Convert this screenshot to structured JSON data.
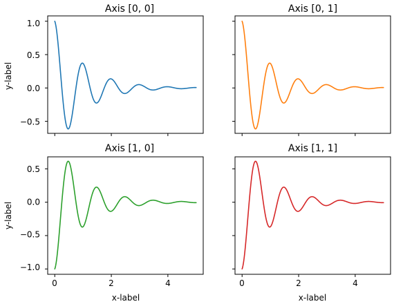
{
  "chart_data": [
    {
      "type": "line",
      "title": "Axis [0, 0]",
      "xlabel": "",
      "ylabel": "y-label",
      "xlim": [
        -0.25,
        5.25
      ],
      "ylim": [
        -0.68,
        1.08
      ],
      "xticks": [
        0,
        2,
        4
      ],
      "xtick_labels": [
        "",
        "",
        ""
      ],
      "yticks": [
        -0.5,
        0.0,
        0.5,
        1.0
      ],
      "ytick_labels": [
        "−0.5",
        "0.0",
        "0.5",
        "1.0"
      ],
      "color": "#1f77b4",
      "series": [
        {
          "function": "cos(2*pi*x)*exp(-x)",
          "sign": 1,
          "x_range": [
            0,
            5
          ]
        }
      ]
    },
    {
      "type": "line",
      "title": "Axis [0, 1]",
      "xlabel": "",
      "ylabel": "",
      "xlim": [
        -0.25,
        5.25
      ],
      "ylim": [
        -0.68,
        1.08
      ],
      "xticks": [
        0,
        2,
        4
      ],
      "xtick_labels": [
        "",
        "",
        ""
      ],
      "yticks": [
        -0.5,
        0.0,
        0.5,
        1.0
      ],
      "ytick_labels": [
        "",
        "",
        "",
        ""
      ],
      "color": "#ff7f0e",
      "series": [
        {
          "function": "cos(2*pi*x)*exp(-x)",
          "sign": 1,
          "x_range": [
            0,
            5
          ]
        }
      ]
    },
    {
      "type": "line",
      "title": "Axis [1, 0]",
      "xlabel": "x-label",
      "ylabel": "y-label",
      "xlim": [
        -0.25,
        5.25
      ],
      "ylim": [
        -1.08,
        0.68
      ],
      "xticks": [
        0,
        2,
        4
      ],
      "xtick_labels": [
        "0",
        "2",
        "4"
      ],
      "yticks": [
        -1.0,
        -0.5,
        0.0,
        0.5
      ],
      "ytick_labels": [
        "−1.0",
        "−0.5",
        "0.0",
        "0.5"
      ],
      "color": "#2ca02c",
      "series": [
        {
          "function": "-cos(2*pi*x)*exp(-x)",
          "sign": -1,
          "x_range": [
            0,
            5
          ]
        }
      ]
    },
    {
      "type": "line",
      "title": "Axis [1, 1]",
      "xlabel": "x-label",
      "ylabel": "",
      "xlim": [
        -0.25,
        5.25
      ],
      "ylim": [
        -1.08,
        0.68
      ],
      "xticks": [
        0,
        2,
        4
      ],
      "xtick_labels": [
        "0",
        "2",
        "4"
      ],
      "yticks": [
        -1.0,
        -0.5,
        0.0,
        0.5
      ],
      "ytick_labels": [
        "",
        "",
        "",
        ""
      ],
      "color": "#d62728",
      "series": [
        {
          "function": "-cos(2*pi*x)*exp(-x)",
          "sign": -1,
          "x_range": [
            0,
            5
          ]
        }
      ]
    }
  ]
}
